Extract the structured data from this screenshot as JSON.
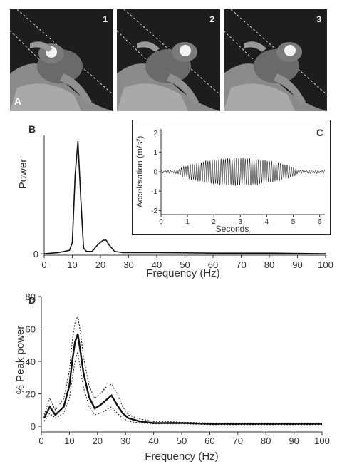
{
  "panel_a": {
    "label": "A",
    "frames": [
      {
        "number": "1",
        "eye_glow": true
      },
      {
        "number": "2",
        "eye_glow": true
      },
      {
        "number": "3",
        "eye_glow": true
      }
    ]
  },
  "chart_data": [
    {
      "panel": "B",
      "type": "line",
      "xlabel": "Frequency (Hz)",
      "ylabel": "Power",
      "xlim": [
        0,
        100
      ],
      "xticks": [
        "0",
        "10",
        "20",
        "30",
        "40",
        "50",
        "60",
        "70",
        "80",
        "90",
        "100"
      ],
      "yticks": [
        "0"
      ],
      "series": [
        {
          "x": [
            0,
            5,
            9,
            10,
            11,
            12,
            13,
            14,
            15,
            17,
            19,
            21,
            22,
            23,
            25,
            28,
            40,
            60,
            80,
            100
          ],
          "y": [
            0,
            0.01,
            0.03,
            0.1,
            0.7,
            1.0,
            0.5,
            0.05,
            0.02,
            0.02,
            0.08,
            0.12,
            0.12,
            0.08,
            0.02,
            0.01,
            0.01,
            0.005,
            0.005,
            0
          ]
        }
      ]
    },
    {
      "panel": "C",
      "type": "line",
      "xlabel": "Seconds",
      "ylabel": "Acceleration (m/s²)",
      "xlim": [
        0,
        6.2
      ],
      "ylim": [
        -2.2,
        2.2
      ],
      "xticks": [
        "0",
        "1",
        "2",
        "3",
        "4",
        "5",
        "6"
      ],
      "yticks": [
        "-2",
        "-1",
        "0",
        "1",
        "2"
      ],
      "signal": {
        "frequency_hz": 12,
        "peak_amplitude": 0.7,
        "active_start_s": 0.6,
        "active_end_s": 5.2
      }
    },
    {
      "panel": "D",
      "type": "line",
      "xlabel": "Frequency (Hz)",
      "ylabel": "% Peak power",
      "xlim": [
        0,
        100
      ],
      "ylim": [
        0,
        80
      ],
      "xticks": [
        "0",
        "10",
        "20",
        "30",
        "40",
        "50",
        "60",
        "70",
        "80",
        "90",
        "100"
      ],
      "yticks": [
        "0",
        "20",
        "40",
        "60",
        "80"
      ],
      "x": [
        1,
        3,
        5,
        8,
        10,
        11,
        12,
        13,
        14,
        15,
        17,
        19,
        21,
        23,
        25,
        27,
        29,
        31,
        35,
        40,
        50,
        60,
        80,
        100
      ],
      "series": [
        {
          "name": "",
          "style": "mean",
          "values": [
            5,
            12,
            7,
            12,
            25,
            40,
            52,
            57,
            45,
            33,
            18,
            11,
            13,
            16,
            19,
            13,
            8,
            5,
            3,
            2,
            2,
            1.5,
            1.5,
            1.5
          ]
        },
        {
          "name": "",
          "style": "upper",
          "values": [
            7,
            17,
            10,
            17,
            34,
            52,
            64,
            68,
            57,
            43,
            25,
            17,
            20,
            24,
            26,
            20,
            12,
            7,
            4.5,
            3,
            2.5,
            2,
            2,
            2
          ]
        },
        {
          "name": "",
          "style": "lower",
          "values": [
            3,
            8,
            5,
            8,
            17,
            29,
            40,
            46,
            34,
            24,
            12,
            7,
            8,
            10,
            12,
            8,
            5,
            3,
            2,
            1.5,
            1.5,
            1,
            1,
            1
          ]
        }
      ]
    }
  ],
  "labels": {
    "panel_b": "B",
    "panel_c": "C",
    "panel_d": "D"
  }
}
